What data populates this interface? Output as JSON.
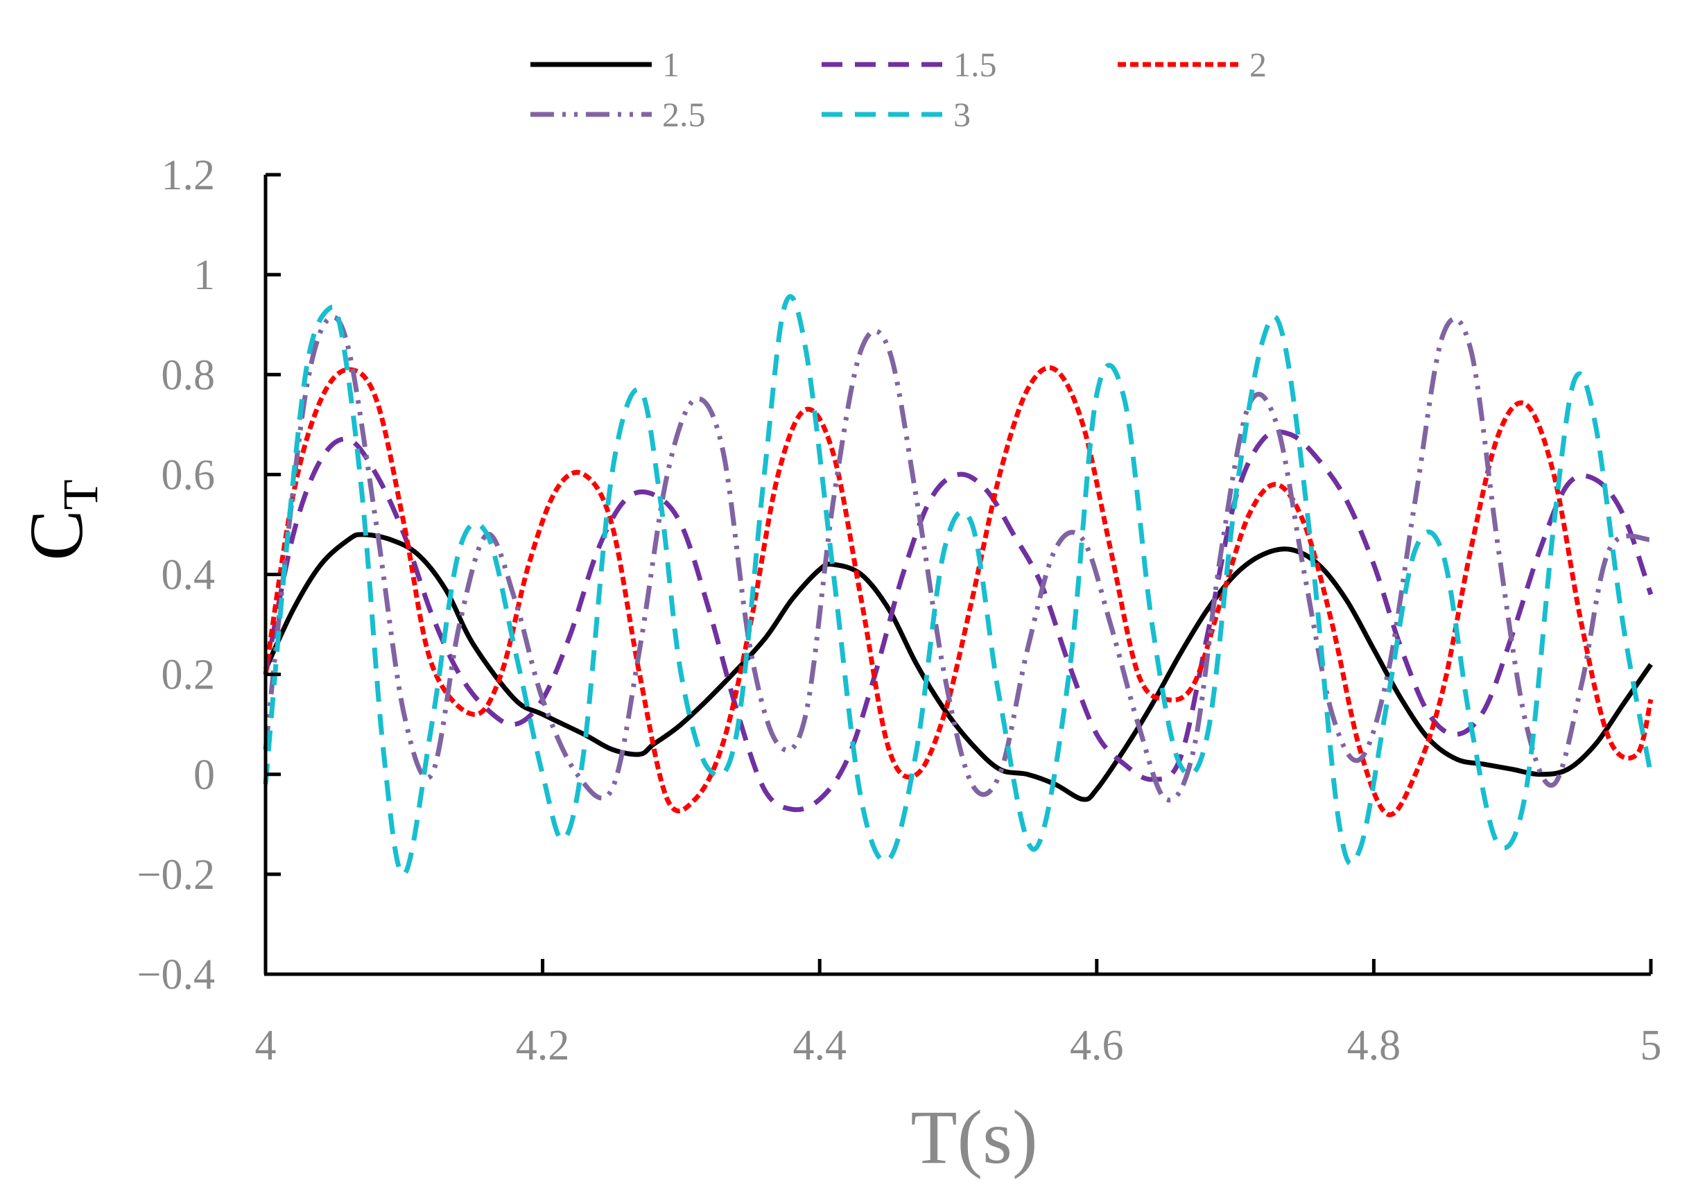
{
  "chart_data": {
    "type": "line",
    "title": "",
    "xlabel": "T(s)",
    "ylabel": {
      "main": "C",
      "sub": "T"
    },
    "xlim": [
      4,
      5
    ],
    "ylim": [
      -0.4,
      1.2
    ],
    "xticks": [
      4,
      4.2,
      4.4,
      4.6,
      4.8,
      5
    ],
    "xtick_labels": [
      "4",
      "4.2",
      "4.4",
      "4.6",
      "4.8",
      "5"
    ],
    "yticks": [
      -0.4,
      -0.2,
      0,
      0.2,
      0.4,
      0.6,
      0.8,
      1,
      1.2
    ],
    "ytick_labels": [
      "−0.4",
      "−0.2",
      "0",
      "0.2",
      "0.4",
      "0.6",
      "0.8",
      "1",
      "1.2"
    ],
    "legend_position": "top",
    "series": [
      {
        "name": "1",
        "color": "#000000",
        "style": "solid",
        "x": [
          4.0,
          4.02,
          4.04,
          4.06,
          4.07,
          4.09,
          4.11,
          4.13,
          4.15,
          4.18,
          4.2,
          4.23,
          4.25,
          4.27,
          4.28,
          4.3,
          4.33,
          4.36,
          4.38,
          4.4,
          4.41,
          4.43,
          4.45,
          4.47,
          4.49,
          4.51,
          4.53,
          4.55,
          4.57,
          4.59,
          4.6,
          4.62,
          4.64,
          4.66,
          4.68,
          4.7,
          4.72,
          4.74,
          4.76,
          4.78,
          4.8,
          4.82,
          4.84,
          4.86,
          4.88,
          4.9,
          4.92,
          4.94,
          4.96,
          4.98,
          5.0
        ],
        "values": [
          0.21,
          0.33,
          0.42,
          0.47,
          0.48,
          0.47,
          0.44,
          0.37,
          0.26,
          0.15,
          0.12,
          0.08,
          0.05,
          0.04,
          0.06,
          0.1,
          0.18,
          0.27,
          0.35,
          0.41,
          0.42,
          0.4,
          0.33,
          0.22,
          0.13,
          0.06,
          0.01,
          0.0,
          -0.02,
          -0.05,
          -0.03,
          0.05,
          0.14,
          0.24,
          0.33,
          0.4,
          0.44,
          0.45,
          0.42,
          0.35,
          0.25,
          0.15,
          0.07,
          0.03,
          0.02,
          0.01,
          0.0,
          0.01,
          0.06,
          0.14,
          0.22
        ]
      },
      {
        "name": "1.5",
        "color": "#7030a0",
        "style": "dashed",
        "x": [
          4.0,
          4.02,
          4.04,
          4.06,
          4.08,
          4.1,
          4.12,
          4.14,
          4.16,
          4.18,
          4.2,
          4.22,
          4.24,
          4.26,
          4.28,
          4.3,
          4.32,
          4.34,
          4.36,
          4.38,
          4.4,
          4.42,
          4.44,
          4.46,
          4.48,
          4.5,
          4.52,
          4.54,
          4.56,
          4.58,
          4.6,
          4.62,
          4.64,
          4.66,
          4.68,
          4.7,
          4.72,
          4.74,
          4.76,
          4.78,
          4.8,
          4.82,
          4.84,
          4.86,
          4.88,
          4.9,
          4.92,
          4.94,
          4.96,
          4.98,
          5.0
        ],
        "values": [
          0.2,
          0.48,
          0.63,
          0.67,
          0.6,
          0.48,
          0.32,
          0.2,
          0.13,
          0.1,
          0.15,
          0.28,
          0.45,
          0.55,
          0.56,
          0.5,
          0.33,
          0.13,
          -0.03,
          -0.07,
          -0.05,
          0.03,
          0.2,
          0.4,
          0.55,
          0.6,
          0.57,
          0.48,
          0.38,
          0.22,
          0.08,
          0.02,
          -0.01,
          0.03,
          0.28,
          0.55,
          0.67,
          0.68,
          0.63,
          0.55,
          0.42,
          0.25,
          0.12,
          0.08,
          0.13,
          0.28,
          0.45,
          0.58,
          0.59,
          0.52,
          0.36
        ]
      },
      {
        "name": "2",
        "color": "#ff0000",
        "style": "dotted",
        "x": [
          4.0,
          4.02,
          4.04,
          4.06,
          4.08,
          4.1,
          4.12,
          4.15,
          4.17,
          4.19,
          4.21,
          4.23,
          4.25,
          4.27,
          4.29,
          4.31,
          4.33,
          4.35,
          4.37,
          4.39,
          4.41,
          4.43,
          4.45,
          4.47,
          4.49,
          4.51,
          4.53,
          4.55,
          4.57,
          4.59,
          4.61,
          4.63,
          4.65,
          4.67,
          4.69,
          4.71,
          4.73,
          4.75,
          4.77,
          4.79,
          4.81,
          4.83,
          4.85,
          4.87,
          4.89,
          4.91,
          4.93,
          4.95,
          4.97,
          4.99,
          5.0
        ],
        "values": [
          0.2,
          0.56,
          0.75,
          0.81,
          0.75,
          0.5,
          0.22,
          0.12,
          0.2,
          0.42,
          0.57,
          0.6,
          0.5,
          0.2,
          -0.05,
          -0.05,
          0.06,
          0.3,
          0.6,
          0.73,
          0.64,
          0.35,
          0.05,
          0.0,
          0.12,
          0.35,
          0.6,
          0.77,
          0.81,
          0.7,
          0.45,
          0.2,
          0.15,
          0.18,
          0.35,
          0.52,
          0.58,
          0.5,
          0.3,
          0.05,
          -0.08,
          0.0,
          0.17,
          0.45,
          0.68,
          0.74,
          0.6,
          0.3,
          0.07,
          0.04,
          0.15
        ]
      },
      {
        "name": "2.5",
        "color": "#8064a2",
        "style": "dash-dot-dot",
        "x": [
          4.0,
          4.015,
          4.03,
          4.045,
          4.06,
          4.08,
          4.1,
          4.12,
          4.14,
          4.16,
          4.18,
          4.2,
          4.225,
          4.25,
          4.27,
          4.29,
          4.31,
          4.33,
          4.35,
          4.37,
          4.39,
          4.41,
          4.43,
          4.45,
          4.47,
          4.49,
          4.51,
          4.53,
          4.55,
          4.57,
          4.59,
          4.61,
          4.63,
          4.65,
          4.67,
          4.69,
          4.71,
          4.73,
          4.75,
          4.77,
          4.79,
          4.81,
          4.83,
          4.85,
          4.87,
          4.89,
          4.91,
          4.93,
          4.95,
          4.97,
          5.0
        ],
        "values": [
          0.05,
          0.45,
          0.78,
          0.91,
          0.85,
          0.5,
          0.12,
          0.0,
          0.3,
          0.48,
          0.35,
          0.15,
          0.0,
          -0.03,
          0.25,
          0.6,
          0.75,
          0.65,
          0.25,
          0.06,
          0.12,
          0.55,
          0.85,
          0.85,
          0.55,
          0.2,
          -0.02,
          0.0,
          0.25,
          0.45,
          0.47,
          0.3,
          0.1,
          -0.05,
          0.05,
          0.45,
          0.74,
          0.7,
          0.4,
          0.12,
          0.03,
          0.2,
          0.55,
          0.88,
          0.85,
          0.45,
          0.1,
          -0.02,
          0.18,
          0.45,
          0.47
        ]
      },
      {
        "name": "3",
        "color": "#17becf",
        "style": "dashed",
        "x": [
          4.0,
          4.015,
          4.03,
          4.045,
          4.055,
          4.07,
          4.085,
          4.1,
          4.12,
          4.14,
          4.16,
          4.18,
          4.2,
          4.215,
          4.23,
          4.25,
          4.27,
          4.285,
          4.3,
          4.32,
          4.34,
          4.36,
          4.375,
          4.39,
          4.41,
          4.43,
          4.45,
          4.47,
          4.49,
          4.51,
          4.53,
          4.555,
          4.58,
          4.6,
          4.62,
          4.64,
          4.66,
          4.68,
          4.7,
          4.72,
          4.735,
          4.755,
          4.775,
          4.79,
          4.81,
          4.83,
          4.85,
          4.87,
          4.89,
          4.91,
          4.93,
          4.945,
          4.96,
          4.98,
          5.0
        ],
        "values": [
          -0.02,
          0.45,
          0.82,
          0.93,
          0.88,
          0.55,
          0.05,
          -0.2,
          0.1,
          0.45,
          0.48,
          0.25,
          0.0,
          -0.13,
          0.05,
          0.6,
          0.77,
          0.55,
          0.2,
          0.01,
          0.08,
          0.6,
          0.94,
          0.85,
          0.4,
          -0.05,
          -0.17,
          0.05,
          0.45,
          0.5,
          0.15,
          -0.15,
          0.2,
          0.76,
          0.75,
          0.3,
          0.02,
          0.08,
          0.55,
          0.87,
          0.87,
          0.45,
          -0.1,
          -0.15,
          0.15,
          0.45,
          0.44,
          0.1,
          -0.14,
          -0.03,
          0.5,
          0.79,
          0.7,
          0.3,
          0.0
        ]
      }
    ]
  }
}
